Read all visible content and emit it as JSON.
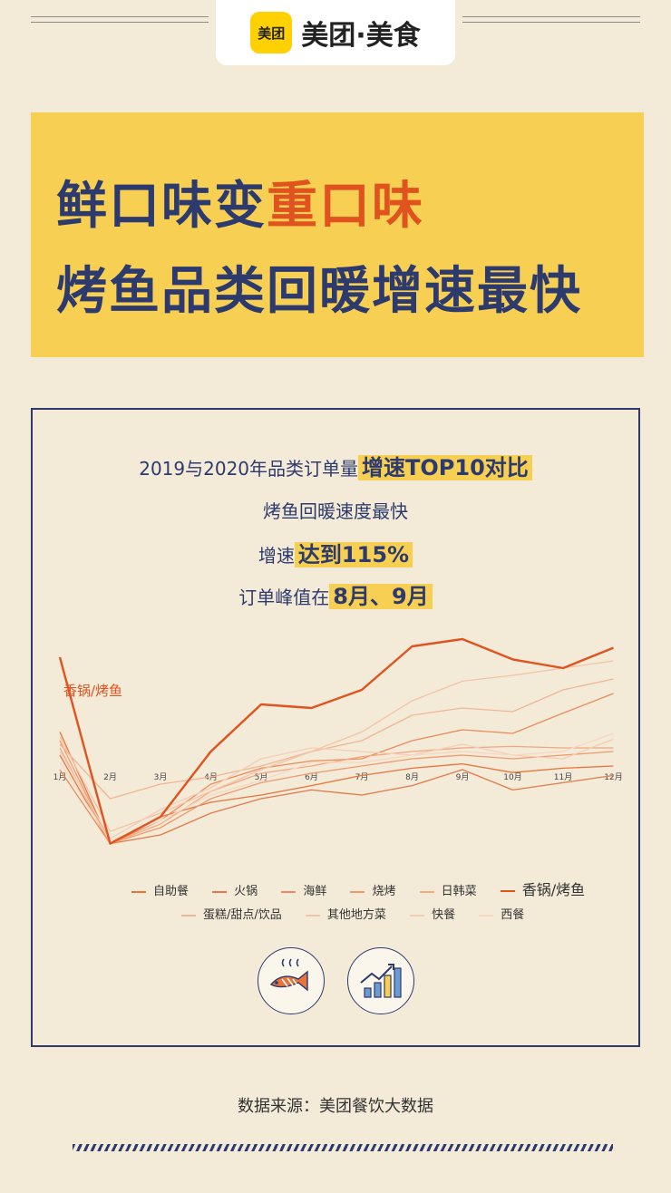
{
  "brand": {
    "mark": "美团",
    "name": "美团·美食"
  },
  "headline": {
    "line1_part1": "鲜口味变",
    "line1_part2": "重口味",
    "line2": "烤鱼品类回暖增速最快"
  },
  "subtitle": {
    "line1_prefix": "2019与2020年品类订单量",
    "line1_highlight": "增速TOP10对比",
    "line2": "烤鱼回暖速度最快",
    "line3_prefix": "增速",
    "line3_highlight": "达到115%",
    "line4_prefix": "订单峰值在",
    "line4_highlight": "8月、9月"
  },
  "colors": {
    "accent_orange": "#e0531f",
    "navy": "#2d3a6e",
    "yellow": "#f7cf53"
  },
  "chart_data": {
    "type": "line",
    "categories": [
      "1月",
      "2月",
      "3月",
      "4月",
      "5月",
      "6月",
      "7月",
      "8月",
      "9月",
      "10月",
      "11月",
      "12月"
    ],
    "annotation": "香锅/烤鱼",
    "series": [
      {
        "name": "自助餐",
        "color": "#e8743b",
        "values": [
          0.62,
          -0.92,
          -0.55,
          -0.35,
          -0.25,
          -0.12,
          0.02,
          0.12,
          0.18,
          0.06,
          0.12,
          0.15
        ]
      },
      {
        "name": "火锅",
        "color": "#e07a4a",
        "values": [
          0.3,
          -0.92,
          -0.8,
          -0.5,
          -0.3,
          -0.18,
          -0.25,
          -0.12,
          0.1,
          -0.18,
          -0.08,
          0.02
        ]
      },
      {
        "name": "海鲜",
        "color": "#ea8c5a",
        "values": [
          0.1,
          -0.92,
          -0.6,
          -0.1,
          0.12,
          0.22,
          0.25,
          0.5,
          0.65,
          0.6,
          0.88,
          1.15
        ]
      },
      {
        "name": "烧烤",
        "color": "#ee9a6c",
        "values": [
          0.5,
          -0.92,
          -0.7,
          -0.3,
          -0.08,
          0.05,
          0.15,
          0.25,
          0.3,
          0.25,
          0.3,
          0.35
        ]
      },
      {
        "name": "日韩菜",
        "color": "#f0a880",
        "values": [
          0.4,
          -0.92,
          -0.65,
          -0.2,
          0.05,
          0.15,
          0.28,
          0.35,
          0.4,
          0.42,
          0.4,
          0.4
        ]
      },
      {
        "name": "香锅/烤鱼",
        "color": "#e0531f",
        "values": [
          1.65,
          -0.92,
          -0.55,
          0.35,
          1.0,
          0.95,
          1.2,
          1.8,
          1.9,
          1.62,
          1.5,
          1.78
        ]
      },
      {
        "name": "蛋糕/甜点/饮品",
        "color": "#f2b594",
        "values": [
          0.45,
          -0.3,
          -0.1,
          0.0,
          0.15,
          0.35,
          0.5,
          0.85,
          0.95,
          0.9,
          1.2,
          1.35
        ]
      },
      {
        "name": "其他地方菜",
        "color": "#f4c2a4",
        "values": [
          0.55,
          -0.75,
          -0.5,
          -0.2,
          0.1,
          0.35,
          0.62,
          1.05,
          1.32,
          1.4,
          1.5,
          1.6
        ]
      },
      {
        "name": "快餐",
        "color": "#f6cdb3",
        "values": [
          0.35,
          -0.85,
          -0.45,
          -0.15,
          0.25,
          0.4,
          0.35,
          0.3,
          0.45,
          0.3,
          0.25,
          0.52
        ]
      },
      {
        "name": "西餐",
        "color": "#f8d7c2",
        "values": [
          0.2,
          -0.88,
          -0.6,
          -0.25,
          -0.05,
          0.2,
          0.2,
          0.3,
          0.35,
          0.3,
          0.35,
          0.6
        ]
      }
    ]
  },
  "source": "数据来源：美团餐饮大数据"
}
